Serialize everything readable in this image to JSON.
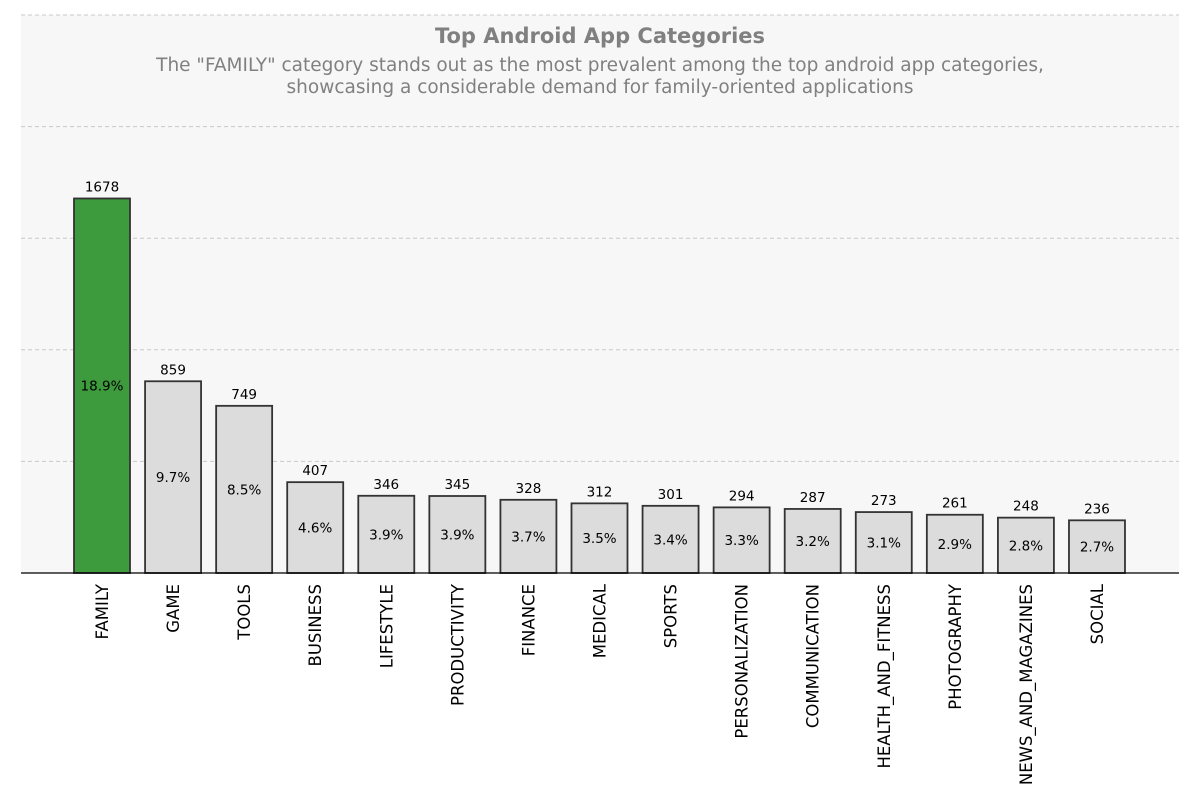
{
  "chart_data": {
    "type": "bar",
    "title": "Top Android App Categories",
    "subtitle_lines": [
      "The \"FAMILY\" category stands out as the most prevalent among the top android app categories,",
      "showcasing a considerable demand for family-oriented applications"
    ],
    "xlabel": "",
    "ylabel": "",
    "categories": [
      "FAMILY",
      "GAME",
      "TOOLS",
      "BUSINESS",
      "LIFESTYLE",
      "PRODUCTIVITY",
      "FINANCE",
      "MEDICAL",
      "SPORTS",
      "PERSONALIZATION",
      "COMMUNICATION",
      "HEALTH_AND_FITNESS",
      "PHOTOGRAPHY",
      "NEWS_AND_MAGAZINES",
      "SOCIAL"
    ],
    "values": [
      1678,
      859,
      749,
      407,
      346,
      345,
      328,
      312,
      301,
      294,
      287,
      273,
      261,
      248,
      236
    ],
    "percent_labels": [
      "18.9%",
      "9.7%",
      "8.5%",
      "4.6%",
      "3.9%",
      "3.9%",
      "3.7%",
      "3.5%",
      "3.4%",
      "3.3%",
      "3.2%",
      "3.1%",
      "2.9%",
      "2.8%",
      "2.7%"
    ],
    "ylim": [
      0,
      2500
    ],
    "y_gridlines": [
      500,
      1000,
      1500,
      2000,
      2500
    ],
    "grid": "horizontal dashed",
    "y_tick_labels_visible": false,
    "highlight_category": "FAMILY",
    "colors": {
      "highlight": "#3d9b3d",
      "default_bar": "#dcdcdc",
      "bar_edge": "#333333",
      "plot_background": "#f7f7f7",
      "grid": "#c8c8c8",
      "text_muted": "#808080"
    }
  }
}
